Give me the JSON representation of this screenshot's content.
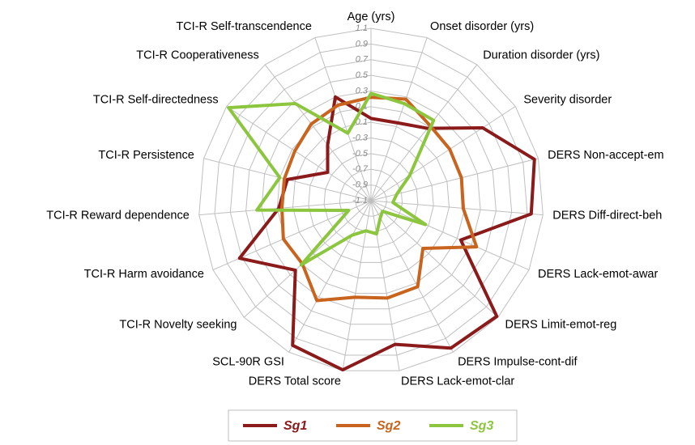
{
  "chart_data": {
    "type": "radar",
    "categories": [
      "Age (yrs)",
      "Onset disorder (yrs)",
      "Duration disorder (yrs)",
      "Severity disorder",
      "DERS Non-accept-em",
      "DERS Diff-direct-beh",
      "DERS Lack-emot-awar",
      "DERS Limit-emot-reg",
      "DERS Impulse-cont-dif",
      "DERS Lack-emot-clar",
      "DERS Total score",
      "SCL-90R GSI",
      "TCI-R Novelty seeking",
      "TCI-R Harm avoidance",
      "TCI-R Reward dependence",
      "TCI-R Persistence",
      "TCI-R Self-directedness",
      "TCI-R Cooperativeness",
      "TCI-R Self-transcendence"
    ],
    "series": [
      {
        "name": "Sg1",
        "color": "#8b1a1a",
        "values": [
          -0.05,
          -0.05,
          0.07,
          0.6,
          1.05,
          0.95,
          0.15,
          1.08,
          1.04,
          0.76,
          1.09,
          1.0,
          0.21,
          0.73,
          0.08,
          0.0,
          -0.44,
          -0.2,
          0.3
        ]
      },
      {
        "name": "Sg2",
        "color": "#c8641e",
        "values": [
          0.22,
          0.27,
          0.12,
          0.1,
          0.09,
          0.08,
          0.37,
          -0.2,
          0.15,
          0.16,
          0.15,
          0.35,
          0.09,
          0.12,
          0.04,
          0.04,
          0.06,
          0.14,
          0.19
        ]
      },
      {
        "name": "Sg3",
        "color": "#8cc63f",
        "values": [
          0.27,
          0.21,
          0.2,
          -0.51,
          -0.76,
          -0.82,
          -0.34,
          -0.9,
          -0.85,
          -0.67,
          -0.71,
          -0.6,
          0.11,
          -0.79,
          0.36,
          0.1,
          1.07,
          0.47,
          -0.19
        ]
      }
    ],
    "rlim": [
      -1.1,
      1.1
    ],
    "rticks": [
      -1.1,
      -0.9,
      -0.7,
      -0.5,
      -0.3,
      -0.1,
      0.1,
      0.3,
      0.5,
      0.7,
      0.9,
      1.1
    ],
    "grid": true,
    "legend": "bottom"
  }
}
